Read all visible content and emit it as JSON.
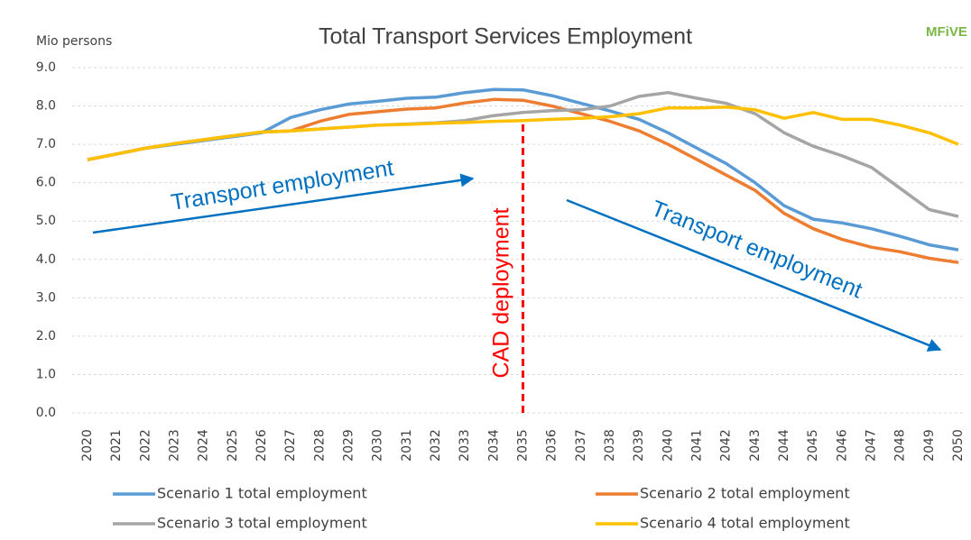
{
  "chart_data": {
    "type": "line",
    "title": "Total Transport Services Employment",
    "y_axis_label": "Mio persons",
    "logo": "MFiVE",
    "annotations": [
      "Transport employment",
      "CAD deployment",
      "Transport employment"
    ],
    "reference_line": {
      "x": "2035",
      "color": "#ff0000"
    },
    "categories": [
      "2020",
      "2021",
      "2022",
      "2023",
      "2024",
      "2025",
      "2026",
      "2027",
      "2028",
      "2029",
      "2030",
      "2031",
      "2032",
      "2033",
      "2034",
      "2035",
      "2036",
      "2037",
      "2038",
      "2039",
      "2040",
      "2041",
      "2042",
      "2043",
      "2044",
      "2045",
      "2046",
      "2047",
      "2048",
      "2049",
      "2050"
    ],
    "series": [
      {
        "name": "Scenario 1 total employment",
        "color": "#5b9bd5",
        "values": [
          6.6,
          6.75,
          6.9,
          7.0,
          7.1,
          7.2,
          7.3,
          7.7,
          7.9,
          8.05,
          8.12,
          8.2,
          8.23,
          8.35,
          8.43,
          8.42,
          8.27,
          8.07,
          7.87,
          7.65,
          7.3,
          6.9,
          6.5,
          6.0,
          5.4,
          5.05,
          4.95,
          4.8,
          4.6,
          4.38,
          4.25
        ]
      },
      {
        "name": "Scenario 2 total employment",
        "color": "#ed7d31",
        "values": [
          6.6,
          6.75,
          6.9,
          7.02,
          7.12,
          7.22,
          7.32,
          7.35,
          7.6,
          7.78,
          7.85,
          7.92,
          7.95,
          8.08,
          8.17,
          8.15,
          8.0,
          7.8,
          7.6,
          7.35,
          7.0,
          6.6,
          6.2,
          5.8,
          5.2,
          4.8,
          4.52,
          4.32,
          4.2,
          4.03,
          3.92
        ]
      },
      {
        "name": "Scenario 3 total employment",
        "color": "#a5a5a5",
        "values": [
          6.6,
          6.75,
          6.9,
          7.02,
          7.12,
          7.22,
          7.32,
          7.35,
          7.4,
          7.45,
          7.5,
          7.53,
          7.56,
          7.62,
          7.75,
          7.83,
          7.88,
          7.9,
          8.0,
          8.25,
          8.35,
          8.2,
          8.07,
          7.8,
          7.3,
          6.95,
          6.7,
          6.4,
          5.85,
          5.3,
          5.12
        ]
      },
      {
        "name": "Scenario 4 total employment",
        "color": "#ffc000",
        "values": [
          6.6,
          6.75,
          6.9,
          7.02,
          7.12,
          7.22,
          7.32,
          7.35,
          7.4,
          7.45,
          7.5,
          7.52,
          7.55,
          7.57,
          7.6,
          7.62,
          7.65,
          7.68,
          7.72,
          7.8,
          7.95,
          7.95,
          7.97,
          7.9,
          7.68,
          7.83,
          7.65,
          7.65,
          7.5,
          7.3,
          7.0
        ]
      }
    ],
    "ylim": [
      0,
      9
    ],
    "yticks": [
      {
        "value": 0,
        "label": "0.0"
      },
      {
        "value": 1,
        "label": "1.0"
      },
      {
        "value": 2,
        "label": "2.0"
      },
      {
        "value": 3,
        "label": "3.0"
      },
      {
        "value": 4,
        "label": "4.0"
      },
      {
        "value": 5,
        "label": "5.0"
      },
      {
        "value": 6,
        "label": "6.0"
      },
      {
        "value": 7,
        "label": "7.0"
      },
      {
        "value": 8,
        "label": "8.0"
      },
      {
        "value": 9,
        "label": "9.0"
      }
    ],
    "grid": true
  }
}
